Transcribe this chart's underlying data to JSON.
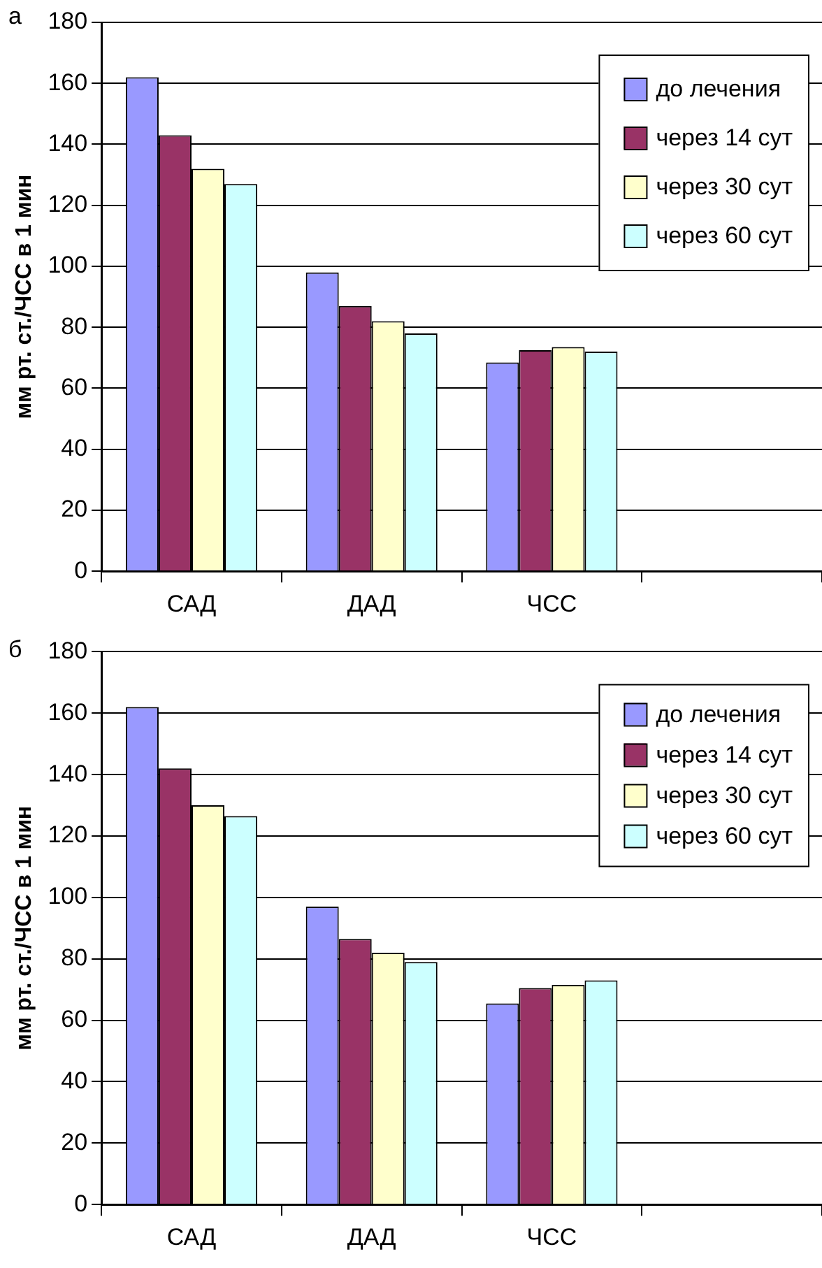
{
  "chart_data": [
    {
      "type": "bar",
      "title": "а",
      "ylabel": "мм рт. ст./ЧСС в 1 мин",
      "categories": [
        "САД",
        "ДАД",
        "ЧСС",
        null
      ],
      "ylim": [
        0,
        180
      ],
      "yticks": [
        0,
        20,
        40,
        60,
        80,
        100,
        120,
        140,
        160,
        180
      ],
      "grid": "y",
      "legend": "top right",
      "series": [
        {
          "name": "до лечения",
          "color": "#9999ff",
          "values": [
            162,
            98,
            68.5,
            null
          ]
        },
        {
          "name": "через 14 сут",
          "color": "#993366",
          "values": [
            143,
            87,
            72.5,
            null
          ]
        },
        {
          "name": "через 30 сут",
          "color": "#ffffcc",
          "values": [
            132,
            82,
            73.5,
            null
          ]
        },
        {
          "name": "через 60 сут",
          "color": "#ccffff",
          "values": [
            127,
            78,
            72,
            null
          ]
        }
      ]
    },
    {
      "type": "bar",
      "title": "б",
      "ylabel": "мм рт. ст./ЧСС в 1 мин",
      "categories": [
        "САД",
        "ДАД",
        "ЧСС",
        null
      ],
      "ylim": [
        0,
        180
      ],
      "yticks": [
        0,
        20,
        40,
        60,
        80,
        100,
        120,
        140,
        160,
        180
      ],
      "grid": "y",
      "legend": "top right",
      "series": [
        {
          "name": "до лечения",
          "color": "#9999ff",
          "values": [
            162,
            97,
            65.5,
            null
          ]
        },
        {
          "name": "через 14 сут",
          "color": "#993366",
          "values": [
            142,
            86.5,
            70.5,
            null
          ]
        },
        {
          "name": "через 30 сут",
          "color": "#ffffcc",
          "values": [
            130,
            82,
            71.5,
            null
          ]
        },
        {
          "name": "через 60 сут",
          "color": "#ccffff",
          "values": [
            126.5,
            79,
            73,
            null
          ]
        }
      ]
    }
  ]
}
